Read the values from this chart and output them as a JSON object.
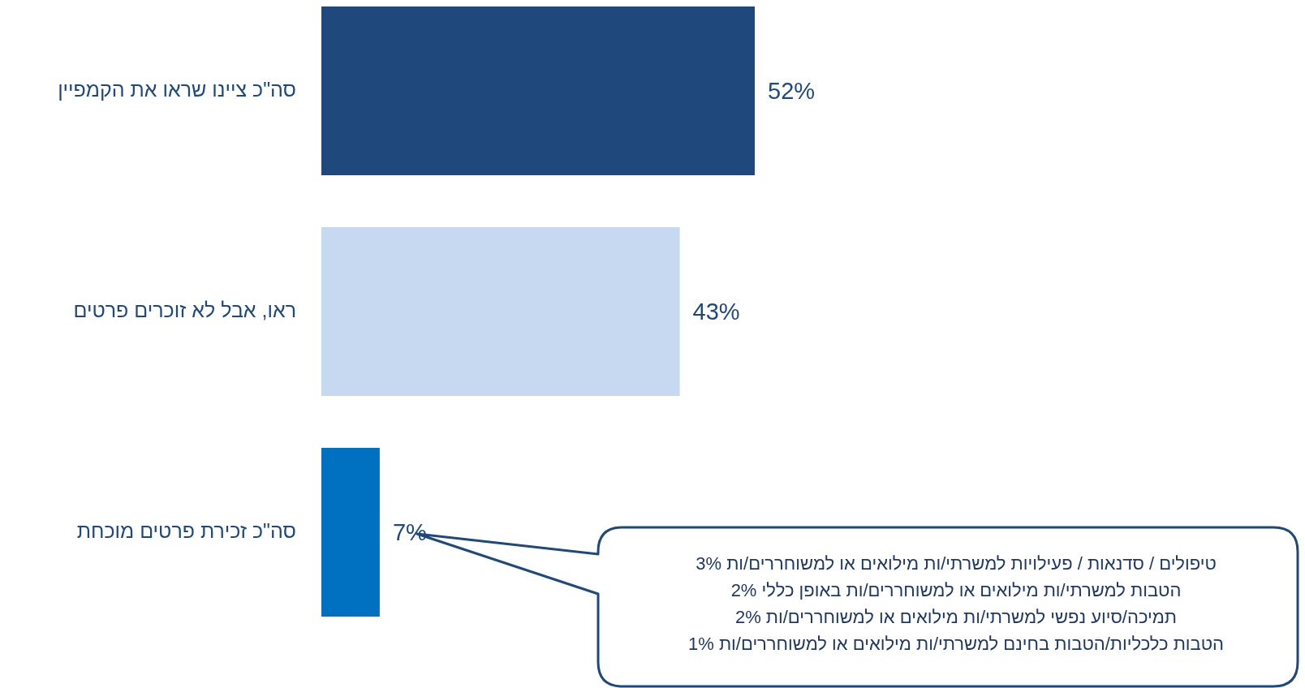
{
  "chart_data": {
    "type": "bar",
    "orientation": "horizontal",
    "categories": [
      "סה\"כ ציינו שראו את הקמפיין",
      "ראו, אבל לא זוכרים פרטים",
      "סה\"כ זכירת פרטים מוכחת"
    ],
    "values": [
      52,
      43,
      7
    ],
    "colors": [
      "#1f497d",
      "#c6d9f1",
      "#0070c0"
    ],
    "value_labels": [
      "52%",
      "43%",
      "7%"
    ],
    "annotations": [
      "טיפולים / סדנאות / פעילויות למשרתי/ות מילואים או למשוחררים/ות 3%\nהטבות למשרתי/ות מילואים או למשוחררים/ות באופן כללי 2%\nתמיכה/סיוע נפשי למשרתי/ות מילואים או למשוחררים/ות 2%\nהטבות כלכליות/הטבות בחינם למשרתי/ות מילואים או למשוחררים/ות 1%"
    ]
  }
}
